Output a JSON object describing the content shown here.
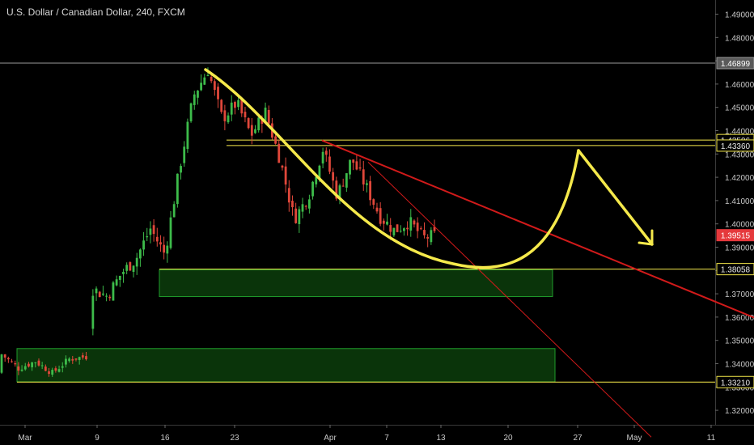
{
  "header": {
    "title": "U.S. Dollar / Canadian Dollar, 240, FXCM"
  },
  "colors": {
    "background": "#000000",
    "up": "#3dbb4a",
    "down": "#e0473a",
    "yellow": "#f5e94b",
    "red": "#d11a1a",
    "zone_fill": "#0b3a0b",
    "zone_stroke": "#1f9d2b",
    "text": "#c8c8c8",
    "price_badge": "#e5393c"
  },
  "chart_data": {
    "type": "candlestick",
    "title": "U.S. Dollar / Canadian Dollar, 240, FXCM",
    "x_ticks": [
      "Mar",
      "9",
      "16",
      "23",
      "Apr",
      "7",
      "13",
      "20",
      "27",
      "May",
      "11"
    ],
    "y_ticks": [
      "1.49000",
      "1.48000",
      "1.47000",
      "1.46000",
      "1.45000",
      "1.44000",
      "1.43000",
      "1.42000",
      "1.41000",
      "1.40000",
      "1.39000",
      "1.38000",
      "1.37000",
      "1.36000",
      "1.35000",
      "1.34000",
      "1.33000",
      "1.32000"
    ],
    "ylim": [
      1.317,
      1.497
    ],
    "price_labels": [
      {
        "value": "1.46899",
        "style": "gray"
      },
      {
        "value": "1.43596",
        "style": "yellow"
      },
      {
        "value": "1.43360",
        "style": "yellow"
      },
      {
        "value": "1.39515",
        "style": "current"
      },
      {
        "value": "1.38058",
        "style": "yellow"
      },
      {
        "value": "1.33210",
        "style": "yellow"
      }
    ],
    "horizontal_lines": [
      {
        "price": 1.46899,
        "color": "gray"
      },
      {
        "price": 1.43596,
        "color": "yellow"
      },
      {
        "price": 1.4336,
        "color": "yellow"
      },
      {
        "price": 1.38058,
        "color": "yellow"
      },
      {
        "price": 1.3321,
        "color": "yellow"
      }
    ],
    "demand_zones": [
      {
        "price_top": 1.3803,
        "price_bottom": 1.3688
      },
      {
        "price_top": 1.3465,
        "price_bottom": 1.3322
      }
    ],
    "ohlc_anchors": [
      [
        1.335,
        1.344
      ],
      [
        1.344,
        1.338
      ],
      [
        1.338,
        1.341
      ],
      [
        1.341,
        1.336
      ],
      [
        1.336,
        1.342
      ],
      [
        1.342,
        1.343
      ],
      [
        1.356,
        1.372
      ],
      [
        1.372,
        1.369
      ],
      [
        1.369,
        1.379
      ],
      [
        1.379,
        1.385
      ],
      [
        1.385,
        1.398
      ],
      [
        1.398,
        1.387
      ],
      [
        1.387,
        1.423
      ],
      [
        1.423,
        1.455
      ],
      [
        1.455,
        1.466
      ],
      [
        1.466,
        1.445
      ],
      [
        1.445,
        1.452
      ],
      [
        1.452,
        1.438
      ],
      [
        1.438,
        1.448
      ],
      [
        1.448,
        1.428
      ],
      [
        1.428,
        1.402
      ],
      [
        1.402,
        1.412
      ],
      [
        1.412,
        1.432
      ],
      [
        1.432,
        1.412
      ],
      [
        1.412,
        1.428
      ],
      [
        1.428,
        1.416
      ],
      [
        1.416,
        1.403
      ],
      [
        1.403,
        1.397
      ],
      [
        1.397,
        1.401
      ],
      [
        1.401,
        1.394
      ],
      [
        1.394,
        1.3952
      ]
    ]
  }
}
